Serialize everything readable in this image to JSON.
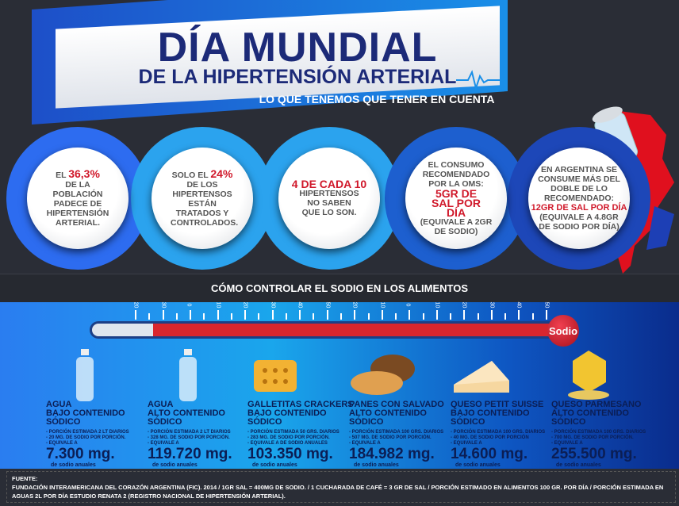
{
  "header": {
    "title": "DÍA MUNDIAL",
    "subtitle": "DE LA HIPERTENSIÓN ARTERIAL",
    "tagline": "LO QUE TENEMOS QUE TENER EN CUENTA"
  },
  "facts": [
    {
      "pre": "EL ",
      "hl": "36,3%",
      "post": "DE LA POBLACIÓN PADECE DE HIPERTENSIÓN ARTERIAL."
    },
    {
      "pre": "SOLO EL ",
      "hl": "24%",
      "post": "DE LOS HIPERTENSOS ESTÁN TRATADOS Y CONTROLADOS."
    },
    {
      "pre": "",
      "hl": "4 DE CADA 10",
      "post": "HIPERTENSOS NO SABEN QUE LO SON."
    },
    {
      "pre": "EL CONSUMO RECOMENDADO POR LA OMS:",
      "hl": "5GR DE SAL POR DÍA",
      "post": "(EQUIVALE A 2GR DE SODIO)"
    },
    {
      "pre": "EN ARGENTINA SE CONSUME MÁS DEL DOBLE DE LO RECOMENDADO:",
      "hl": "12GR DE SAL POR DÍA",
      "post": "(EQUIVALE A 4.8GR DE SODIO POR DÍA)"
    }
  ],
  "section_title": "CÓMO CONTROLAR EL SODIO EN LOS ALIMENTOS",
  "thermometer": {
    "label": "Sodio",
    "ticks": [
      "20",
      "30",
      "0",
      "10",
      "20",
      "30",
      "40",
      "50",
      "20",
      "10",
      "0",
      "10",
      "20",
      "30",
      "40",
      "50"
    ],
    "fill_low_fraction": 0.13
  },
  "foods": [
    {
      "name": "AGUA",
      "level": "BAJO CONTENIDO SÓDICO",
      "d1": "- PORCIÓN ESTIMADA 2 LT DIARIOS",
      "d2": "- 20 MG. DE SODIO POR PORCIÓN.",
      "d3": "- EQUIVALE A",
      "value": "7.300 mg.",
      "unit": "de sodio anuales",
      "icon": "water-bottle"
    },
    {
      "name": "AGUA",
      "level": "ALTO CONTENIDO SÓDICO",
      "d1": "- PORCIÓN ESTIMADA 2 LT DIARIOS",
      "d2": "- 328 MG. DE SODIO POR PORCIÓN.",
      "d3": "- EQUIVALE A",
      "value": "119.720 mg.",
      "unit": "de sodio anuales",
      "icon": "water-bottle"
    },
    {
      "name": "GALLETITAS CRACKERS",
      "level": "BAJO CONTENIDO SÓDICO",
      "d1": "- PORCIÓN ESTIMADA 50 GRS. DIARIOS",
      "d2": "- 283 MG. DE SODIO POR PORCIÓN.",
      "d3": "- EQUIVALE A DE SODIO ANUALES",
      "value": "103.350 mg.",
      "unit": "de sodio anuales",
      "icon": "cracker"
    },
    {
      "name": "PANES CON SALVADO",
      "level": "ALTO CONTENIDO SÓDICO",
      "d1": "- PORCIÓN ESTIMADA 100 GRS. DIARIOS",
      "d2": "- 507 MG. DE SODIO POR PORCIÓN.",
      "d3": "- EQUIVALE A",
      "value": "184.982 mg.",
      "unit": "de sodio anuales",
      "icon": "bread"
    },
    {
      "name": "QUESO PETIT SUISSE",
      "level": "BAJO CONTENIDO SÓDICO",
      "d1": "- PORCIÓN ESTIMADA 100 GRS. DIARIOS",
      "d2": "- 40 MG. DE SODIO POR PORCIÓN",
      "d3": "- EQUIVALE A",
      "value": "14.600 mg.",
      "unit": "de sodio anuales",
      "icon": "cheese-wedge"
    },
    {
      "name": "QUESO PARMESANO",
      "level": "ALTO CONTENIDO SÓDICO",
      "d1": "- PORCIÓN ESTIMADA 100 GRS. DIARIOS",
      "d2": "- 700 MG. DE SODIO POR PORCIÓN.",
      "d3": "- EQUIVALE A",
      "value": "255.500 mg.",
      "unit": "de sodio anuales",
      "icon": "parmesan"
    }
  ],
  "footer": {
    "label": "FUENTE:",
    "text": "FUNDACIÓN INTERAMERICANA DEL CORAZÓN ARGENTINA (FIC). 2014 / 1GR SAL = 400MG DE SODIO. / 1 CUCHARADA DE CAFÉ = 3 GR DE SAL / PORCIÓN ESTIMADO EN ALIMENTOS 100 GR. POR DÍA / PORCIÓN ESTIMADA EN AGUAS 2L POR DÍA ESTUDIO RENATA 2 (REGISTRO NACIONAL DE HIPERTENSIÓN ARTERIAL)."
  },
  "colors": {
    "background": "#2a2d36",
    "accent_red": "#d0182a",
    "title_blue": "#1c2a78",
    "ring_blue": "#2ba3ee"
  }
}
